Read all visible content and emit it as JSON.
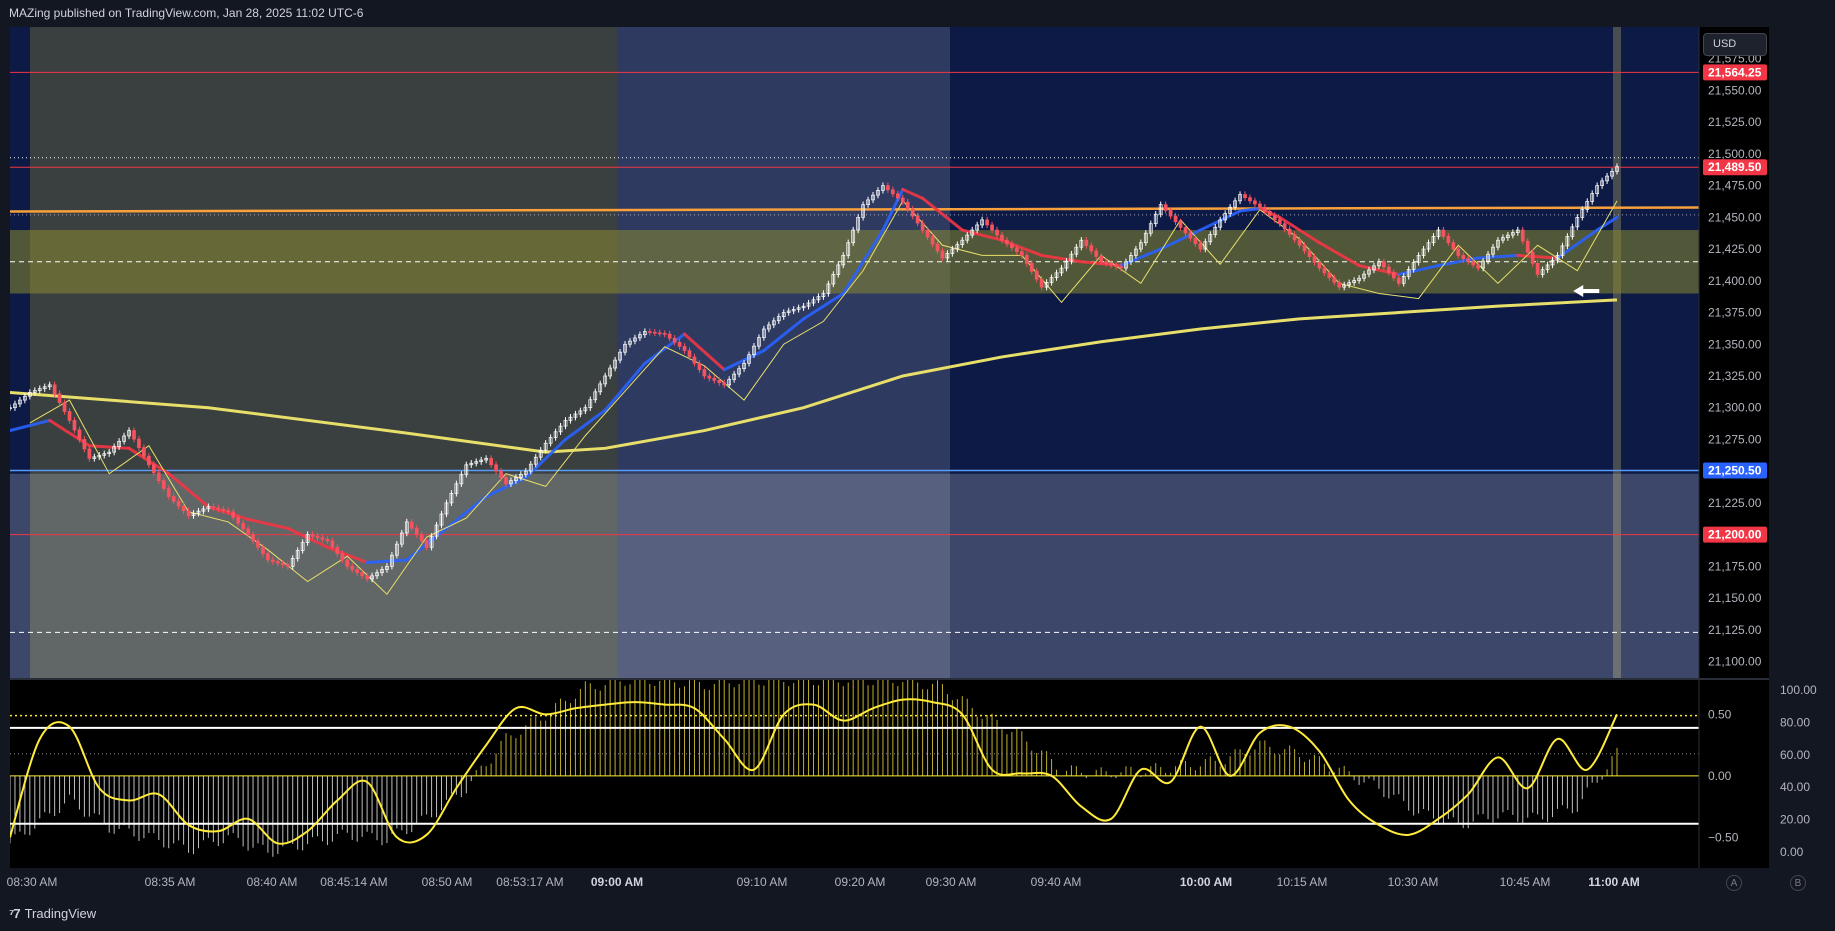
{
  "header": {
    "published": "MAZing published on TradingView.com, Jan 28, 2025 11:02 UTC-6"
  },
  "footer": {
    "logo": "TradingView"
  },
  "toolbar": {
    "currency": "USD",
    "btn_a": "A",
    "btn_b": "B"
  },
  "colors": {
    "background": "#131722",
    "price_candle": "#ffffff",
    "downtrend_ma": "#f23645",
    "uptrend_ma": "#2962ff",
    "long_ma": "#e8df6a",
    "resistance_line": "#f7a03c",
    "support_line": "#5b9cf6",
    "oscillator": "#ffeb3b"
  },
  "chart_data": [
    {
      "type": "line",
      "name": "price",
      "x_ticks": [
        {
          "label": "08:30 AM",
          "bold": false
        },
        {
          "label": "08:35 AM",
          "bold": false
        },
        {
          "label": "08:40 AM",
          "bold": false
        },
        {
          "label": "08:45:14 AM",
          "bold": false
        },
        {
          "label": "08:50 AM",
          "bold": false
        },
        {
          "label": "08:53:17 AM",
          "bold": false
        },
        {
          "label": "09:00 AM",
          "bold": true
        },
        {
          "label": "09:10 AM",
          "bold": false
        },
        {
          "label": "09:20 AM",
          "bold": false
        },
        {
          "label": "09:30 AM",
          "bold": false
        },
        {
          "label": "09:40 AM",
          "bold": false
        },
        {
          "label": "10:00 AM",
          "bold": true
        },
        {
          "label": "10:15 AM",
          "bold": false
        },
        {
          "label": "10:30 AM",
          "bold": false
        },
        {
          "label": "10:45 AM",
          "bold": false
        },
        {
          "label": "11:00 AM",
          "bold": true
        }
      ],
      "y_ticks": [
        "21,575.00",
        "21,550.00",
        "21,525.00",
        "21,500.00",
        "21,475.00",
        "21,450.00",
        "21,425.00",
        "21,400.00",
        "21,375.00",
        "21,350.00",
        "21,325.00",
        "21,300.00",
        "21,275.00",
        "21,250.00",
        "21,225.00",
        "21,200.00",
        "21,175.00",
        "21,150.00",
        "21,125.00",
        "21,100.00"
      ],
      "ylim": [
        21087,
        21600
      ],
      "price_labels": [
        {
          "value": 21564.25,
          "label": "21,564.25",
          "color": "#f23645"
        },
        {
          "value": 21489.5,
          "label": "21,489.50",
          "color": "#f23645"
        },
        {
          "value": 21250.5,
          "label": "21,250.50",
          "color": "#2962ff"
        },
        {
          "value": 21200.0,
          "label": "21,200.00",
          "color": "#f23645"
        }
      ],
      "levels": {
        "resistance": 21457,
        "zone_top": 21440,
        "zone_bottom": 21390,
        "zone_mid": 21415,
        "dotted_high": 21497,
        "dotted_upper": 21452,
        "dashed_low": 21123
      },
      "series": {
        "price": [
          [
            0,
            21300
          ],
          [
            2,
            21312
          ],
          [
            4,
            21318
          ],
          [
            6,
            21290
          ],
          [
            8,
            21260
          ],
          [
            10,
            21265
          ],
          [
            12,
            21282
          ],
          [
            14,
            21255
          ],
          [
            16,
            21230
          ],
          [
            18,
            21215
          ],
          [
            20,
            21222
          ],
          [
            22,
            21218
          ],
          [
            24,
            21200
          ],
          [
            26,
            21180
          ],
          [
            28,
            21175
          ],
          [
            30,
            21200
          ],
          [
            32,
            21195
          ],
          [
            34,
            21175
          ],
          [
            36,
            21165
          ],
          [
            38,
            21175
          ],
          [
            40,
            21210
          ],
          [
            42,
            21190
          ],
          [
            44,
            21225
          ],
          [
            46,
            21255
          ],
          [
            48,
            21260
          ],
          [
            50,
            21240
          ],
          [
            52,
            21250
          ],
          [
            54,
            21272
          ],
          [
            56,
            21290
          ],
          [
            58,
            21300
          ],
          [
            60,
            21325
          ],
          [
            62,
            21350
          ],
          [
            64,
            21360
          ],
          [
            66,
            21358
          ],
          [
            68,
            21345
          ],
          [
            70,
            21325
          ],
          [
            72,
            21318
          ],
          [
            74,
            21335
          ],
          [
            76,
            21362
          ],
          [
            78,
            21375
          ],
          [
            80,
            21380
          ],
          [
            82,
            21390
          ],
          [
            84,
            21420
          ],
          [
            86,
            21460
          ],
          [
            88,
            21475
          ],
          [
            90,
            21462
          ],
          [
            92,
            21440
          ],
          [
            94,
            21418
          ],
          [
            96,
            21432
          ],
          [
            98,
            21448
          ],
          [
            100,
            21432
          ],
          [
            102,
            21420
          ],
          [
            104,
            21395
          ],
          [
            106,
            21410
          ],
          [
            108,
            21432
          ],
          [
            110,
            21415
          ],
          [
            112,
            21410
          ],
          [
            114,
            21430
          ],
          [
            116,
            21460
          ],
          [
            118,
            21442
          ],
          [
            120,
            21425
          ],
          [
            122,
            21448
          ],
          [
            124,
            21468
          ],
          [
            126,
            21458
          ],
          [
            128,
            21445
          ],
          [
            130,
            21428
          ],
          [
            132,
            21410
          ],
          [
            134,
            21395
          ],
          [
            136,
            21402
          ],
          [
            138,
            21415
          ],
          [
            140,
            21398
          ],
          [
            142,
            21420
          ],
          [
            144,
            21440
          ],
          [
            146,
            21420
          ],
          [
            148,
            21410
          ],
          [
            150,
            21432
          ],
          [
            152,
            21440
          ],
          [
            154,
            21405
          ],
          [
            156,
            21420
          ],
          [
            158,
            21450
          ],
          [
            160,
            21475
          ],
          [
            162,
            21490
          ]
        ],
        "long_ma": [
          [
            0,
            21312
          ],
          [
            20,
            21300
          ],
          [
            40,
            21280
          ],
          [
            54,
            21265
          ],
          [
            60,
            21268
          ],
          [
            70,
            21282
          ],
          [
            80,
            21300
          ],
          [
            90,
            21325
          ],
          [
            100,
            21340
          ],
          [
            110,
            21352
          ],
          [
            120,
            21362
          ],
          [
            130,
            21370
          ],
          [
            140,
            21375
          ],
          [
            150,
            21380
          ],
          [
            162,
            21385
          ]
        ],
        "fast_ma": [
          [
            0,
            21282
          ],
          [
            4,
            21290
          ],
          [
            8,
            21270
          ],
          [
            12,
            21268
          ],
          [
            16,
            21248
          ],
          [
            20,
            21222
          ],
          [
            24,
            21212
          ],
          [
            28,
            21205
          ],
          [
            32,
            21190
          ],
          [
            36,
            21178
          ],
          [
            40,
            21180
          ],
          [
            44,
            21205
          ],
          [
            48,
            21230
          ],
          [
            52,
            21245
          ],
          [
            56,
            21275
          ],
          [
            60,
            21298
          ],
          [
            64,
            21335
          ],
          [
            68,
            21358
          ],
          [
            72,
            21330
          ],
          [
            76,
            21345
          ],
          [
            80,
            21370
          ],
          [
            84,
            21390
          ],
          [
            88,
            21440
          ],
          [
            90,
            21472
          ],
          [
            92,
            21465
          ],
          [
            96,
            21440
          ],
          [
            100,
            21432
          ],
          [
            104,
            21420
          ],
          [
            108,
            21415
          ],
          [
            112,
            21412
          ],
          [
            116,
            21425
          ],
          [
            120,
            21440
          ],
          [
            124,
            21455
          ],
          [
            126,
            21457
          ],
          [
            128,
            21450
          ],
          [
            132,
            21430
          ],
          [
            136,
            21412
          ],
          [
            140,
            21405
          ],
          [
            144,
            21412
          ],
          [
            148,
            21418
          ],
          [
            152,
            21420
          ],
          [
            156,
            21418
          ],
          [
            160,
            21440
          ],
          [
            162,
            21450
          ]
        ]
      },
      "arrow_marker": {
        "x": 159,
        "y": 21392
      }
    },
    {
      "type": "area",
      "name": "oscillator",
      "y_ticks": [
        "0.50",
        "0.00",
        "−0.50"
      ],
      "right_ticks": [
        "100.00",
        "80.00",
        "60.00",
        "40.00",
        "20.00",
        "0.00"
      ],
      "ylim": [
        -0.75,
        0.78
      ],
      "levels": {
        "upper": 0.39,
        "lower": -0.39,
        "zero": 0.0,
        "dotted_high": 0.49,
        "dotted_mid": 0.18
      },
      "histogram": [
        [
          0,
          -0.55
        ],
        [
          6,
          -0.2
        ],
        [
          10,
          -0.42
        ],
        [
          14,
          -0.5
        ],
        [
          18,
          -0.6
        ],
        [
          22,
          -0.5
        ],
        [
          26,
          -0.62
        ],
        [
          30,
          -0.55
        ],
        [
          34,
          -0.48
        ],
        [
          38,
          -0.52
        ],
        [
          42,
          -0.35
        ],
        [
          46,
          -0.1
        ],
        [
          50,
          0.3
        ],
        [
          54,
          0.5
        ],
        [
          58,
          0.72
        ],
        [
          62,
          0.78
        ],
        [
          66,
          0.78
        ],
        [
          70,
          0.74
        ],
        [
          74,
          0.78
        ],
        [
          78,
          0.78
        ],
        [
          82,
          0.78
        ],
        [
          86,
          0.78
        ],
        [
          90,
          0.78
        ],
        [
          94,
          0.72
        ],
        [
          98,
          0.5
        ],
        [
          102,
          0.32
        ],
        [
          106,
          0.05
        ],
        [
          110,
          0.02
        ],
        [
          114,
          0.04
        ],
        [
          118,
          0.08
        ],
        [
          122,
          0.12
        ],
        [
          126,
          0.25
        ],
        [
          130,
          0.18
        ],
        [
          134,
          0.05
        ],
        [
          138,
          -0.1
        ],
        [
          142,
          -0.3
        ],
        [
          146,
          -0.4
        ],
        [
          150,
          -0.32
        ],
        [
          154,
          -0.35
        ],
        [
          158,
          -0.25
        ],
        [
          162,
          0.18
        ]
      ],
      "signal": [
        [
          0,
          -0.5
        ],
        [
          3,
          0.3
        ],
        [
          6,
          0.4
        ],
        [
          9,
          -0.1
        ],
        [
          12,
          -0.2
        ],
        [
          15,
          -0.15
        ],
        [
          18,
          -0.4
        ],
        [
          21,
          -0.45
        ],
        [
          24,
          -0.35
        ],
        [
          27,
          -0.55
        ],
        [
          30,
          -0.45
        ],
        [
          33,
          -0.2
        ],
        [
          36,
          -0.05
        ],
        [
          39,
          -0.5
        ],
        [
          42,
          -0.48
        ],
        [
          45,
          -0.1
        ],
        [
          48,
          0.25
        ],
        [
          51,
          0.55
        ],
        [
          54,
          0.5
        ],
        [
          57,
          0.55
        ],
        [
          60,
          0.58
        ],
        [
          63,
          0.6
        ],
        [
          66,
          0.58
        ],
        [
          69,
          0.55
        ],
        [
          72,
          0.3
        ],
        [
          75,
          0.05
        ],
        [
          78,
          0.5
        ],
        [
          81,
          0.58
        ],
        [
          84,
          0.45
        ],
        [
          87,
          0.55
        ],
        [
          90,
          0.62
        ],
        [
          93,
          0.6
        ],
        [
          96,
          0.5
        ],
        [
          99,
          0.05
        ],
        [
          102,
          0.02
        ],
        [
          105,
          0.0
        ],
        [
          108,
          -0.25
        ],
        [
          111,
          -0.35
        ],
        [
          114,
          0.05
        ],
        [
          117,
          -0.05
        ],
        [
          120,
          0.4
        ],
        [
          123,
          0.0
        ],
        [
          126,
          0.35
        ],
        [
          129,
          0.4
        ],
        [
          132,
          0.2
        ],
        [
          135,
          -0.2
        ],
        [
          138,
          -0.4
        ],
        [
          141,
          -0.48
        ],
        [
          144,
          -0.35
        ],
        [
          147,
          -0.15
        ],
        [
          150,
          0.15
        ],
        [
          153,
          -0.1
        ],
        [
          156,
          0.3
        ],
        [
          159,
          0.05
        ],
        [
          162,
          0.5
        ]
      ]
    }
  ]
}
